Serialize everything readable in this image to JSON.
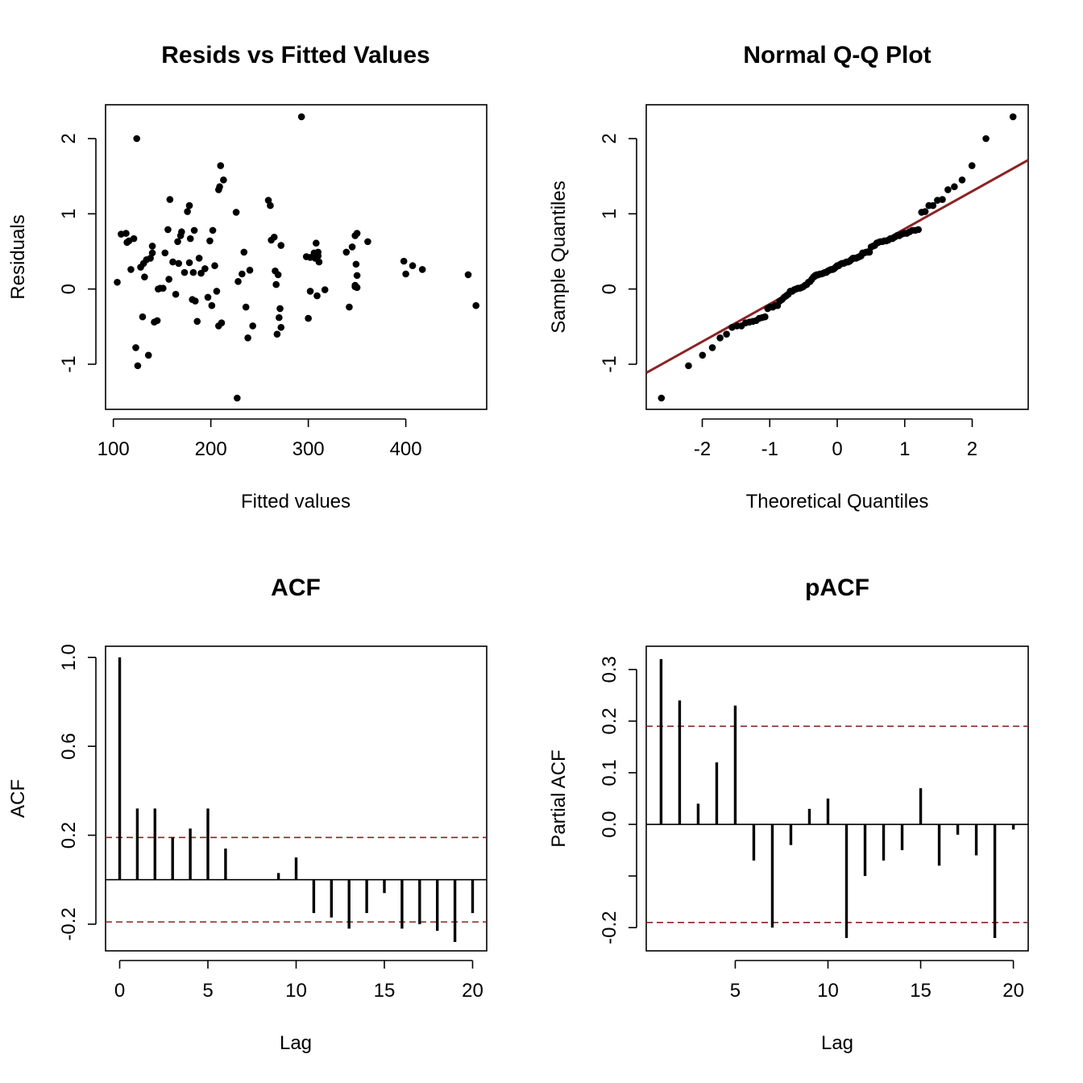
{
  "colors": {
    "ink": "#000000",
    "ref": "#8B2323"
  },
  "chart_data": [
    {
      "type": "scatter",
      "title": "Resids vs Fitted Values",
      "xlabel": "Fitted values",
      "ylabel": "Residuals",
      "xlim": [
        92,
        483
      ],
      "ylim": [
        -1.6,
        2.45
      ],
      "xticks": [
        100,
        200,
        300,
        400
      ],
      "yticks": [
        -1,
        0,
        1,
        2
      ],
      "points": [
        [
          104,
          0.09
        ],
        [
          108,
          0.73
        ],
        [
          113,
          0.74
        ],
        [
          114,
          0.62
        ],
        [
          116,
          0.64
        ],
        [
          118,
          0.26
        ],
        [
          121,
          0.67
        ],
        [
          123,
          -0.78
        ],
        [
          124,
          2.0
        ],
        [
          125,
          -1.02
        ],
        [
          128,
          0.29
        ],
        [
          130,
          -0.37
        ],
        [
          131,
          0.34
        ],
        [
          132,
          0.16
        ],
        [
          134,
          0.39
        ],
        [
          136,
          -0.88
        ],
        [
          138,
          0.41
        ],
        [
          140,
          0.48
        ],
        [
          140,
          0.57
        ],
        [
          142,
          -0.44
        ],
        [
          145,
          -0.42
        ],
        [
          146,
          0.0
        ],
        [
          148,
          0.01
        ],
        [
          151,
          0.01
        ],
        [
          153,
          0.48
        ],
        [
          156,
          0.79
        ],
        [
          157,
          0.13
        ],
        [
          158,
          1.19
        ],
        [
          161,
          0.36
        ],
        [
          164,
          -0.07
        ],
        [
          166,
          0.63
        ],
        [
          167,
          0.34
        ],
        [
          169,
          0.71
        ],
        [
          170,
          0.76
        ],
        [
          173,
          0.22
        ],
        [
          176,
          1.03
        ],
        [
          178,
          0.35
        ],
        [
          178,
          1.11
        ],
        [
          179,
          0.67
        ],
        [
          181,
          -0.14
        ],
        [
          182,
          0.22
        ],
        [
          183,
          0.78
        ],
        [
          184,
          -0.16
        ],
        [
          186,
          -0.43
        ],
        [
          188,
          0.41
        ],
        [
          190,
          0.21
        ],
        [
          194,
          0.27
        ],
        [
          197,
          -0.11
        ],
        [
          199,
          0.64
        ],
        [
          201,
          -0.22
        ],
        [
          202,
          0.78
        ],
        [
          204,
          0.31
        ],
        [
          206,
          -0.03
        ],
        [
          208,
          1.32
        ],
        [
          208,
          -0.49
        ],
        [
          209,
          1.36
        ],
        [
          210,
          1.64
        ],
        [
          211,
          -0.45
        ],
        [
          213,
          1.45
        ],
        [
          226,
          1.02
        ],
        [
          227,
          -1.45
        ],
        [
          228,
          0.1
        ],
        [
          232,
          0.2
        ],
        [
          234,
          0.49
        ],
        [
          236,
          -0.24
        ],
        [
          238,
          -0.65
        ],
        [
          240,
          0.25
        ],
        [
          243,
          -0.49
        ],
        [
          259,
          1.18
        ],
        [
          261,
          1.11
        ],
        [
          262,
          0.65
        ],
        [
          265,
          0.69
        ],
        [
          266,
          0.24
        ],
        [
          268,
          -0.6
        ],
        [
          267,
          0.06
        ],
        [
          269,
          0.19
        ],
        [
          270,
          -0.38
        ],
        [
          271,
          -0.26
        ],
        [
          272,
          -0.51
        ],
        [
          272,
          0.58
        ],
        [
          293,
          2.29
        ],
        [
          298,
          0.43
        ],
        [
          300,
          -0.39
        ],
        [
          302,
          0.42
        ],
        [
          302,
          -0.03
        ],
        [
          306,
          0.48
        ],
        [
          307,
          0.41
        ],
        [
          308,
          0.61
        ],
        [
          309,
          -0.09
        ],
        [
          310,
          0.44
        ],
        [
          310,
          0.49
        ],
        [
          311,
          0.36
        ],
        [
          317,
          -0.01
        ],
        [
          342,
          -0.24
        ],
        [
          345,
          0.56
        ],
        [
          348,
          0.71
        ],
        [
          348,
          0.05
        ],
        [
          348,
          0.03
        ],
        [
          349,
          0.33
        ],
        [
          350,
          0.74
        ],
        [
          350,
          0.18
        ],
        [
          350,
          0.02
        ],
        [
          361,
          0.63
        ],
        [
          398,
          0.37
        ],
        [
          400,
          0.2
        ],
        [
          407,
          0.31
        ],
        [
          417,
          0.26
        ],
        [
          464,
          0.19
        ],
        [
          472,
          -0.22
        ],
        [
          339,
          0.49
        ]
      ]
    },
    {
      "type": "scatter",
      "title": "Normal Q-Q Plot",
      "xlabel": "Theoretical Quantiles",
      "ylabel": "Sample Quantiles",
      "xlim": [
        -2.83,
        2.83
      ],
      "ylim": [
        -1.6,
        2.45
      ],
      "xticks": [
        -2,
        -1,
        0,
        1,
        2
      ],
      "yticks": [
        -1,
        0,
        1,
        2
      ],
      "reference_line": {
        "slope": 0.5,
        "intercept": 0.3
      },
      "sample_quantiles": [
        -1.45,
        -1.02,
        -0.88,
        -0.78,
        -0.65,
        -0.6,
        -0.51,
        -0.49,
        -0.49,
        -0.45,
        -0.44,
        -0.43,
        -0.42,
        -0.39,
        -0.38,
        -0.37,
        -0.26,
        -0.24,
        -0.24,
        -0.22,
        -0.22,
        -0.16,
        -0.14,
        -0.11,
        -0.09,
        -0.07,
        -0.03,
        -0.03,
        -0.01,
        0.0,
        0.01,
        0.01,
        0.02,
        0.03,
        0.05,
        0.06,
        0.09,
        0.1,
        0.13,
        0.16,
        0.18,
        0.19,
        0.19,
        0.2,
        0.2,
        0.21,
        0.22,
        0.22,
        0.24,
        0.25,
        0.26,
        0.26,
        0.27,
        0.29,
        0.31,
        0.31,
        0.33,
        0.34,
        0.34,
        0.35,
        0.36,
        0.36,
        0.37,
        0.39,
        0.41,
        0.41,
        0.41,
        0.42,
        0.43,
        0.44,
        0.48,
        0.48,
        0.49,
        0.49,
        0.49,
        0.56,
        0.57,
        0.58,
        0.61,
        0.62,
        0.63,
        0.63,
        0.64,
        0.64,
        0.65,
        0.67,
        0.67,
        0.69,
        0.71,
        0.71,
        0.73,
        0.74,
        0.74,
        0.76,
        0.78,
        0.78,
        0.79,
        1.02,
        1.03,
        1.11,
        1.11,
        1.18,
        1.19,
        1.32,
        1.36,
        1.45,
        1.64,
        2.0,
        2.29
      ]
    },
    {
      "type": "bar",
      "title": "ACF",
      "xlabel": "Lag",
      "ylabel": "ACF",
      "xlim": [
        -0.8,
        20.8
      ],
      "ylim": [
        -0.32,
        1.05
      ],
      "xticks": [
        0,
        5,
        10,
        15,
        20
      ],
      "yticks": [
        -0.2,
        0.2,
        0.6,
        1.0
      ],
      "yticklabels": [
        "-0.2",
        "0.2",
        "0.6",
        "1.0"
      ],
      "ci": 0.19,
      "lags": [
        0,
        1,
        2,
        3,
        4,
        5,
        6,
        7,
        8,
        9,
        10,
        11,
        12,
        13,
        14,
        15,
        16,
        17,
        18,
        19,
        20
      ],
      "values": [
        1.0,
        0.32,
        0.32,
        0.19,
        0.23,
        0.32,
        0.14,
        0.0,
        0.0,
        0.03,
        0.1,
        -0.15,
        -0.17,
        -0.22,
        -0.15,
        -0.06,
        -0.22,
        -0.2,
        -0.23,
        -0.28,
        -0.15
      ]
    },
    {
      "type": "bar",
      "title": "pACF",
      "xlabel": "Lag",
      "ylabel": "Partial ACF",
      "xlim": [
        0.2,
        20.8
      ],
      "ylim": [
        -0.245,
        0.345
      ],
      "xticks": [
        5,
        10,
        15,
        20
      ],
      "yticks": [
        -0.2,
        -0.1,
        0.0,
        0.1,
        0.2,
        0.3
      ],
      "yticklabels": [
        "-0.2",
        "",
        "0.0",
        "0.1",
        "0.2",
        "0.3"
      ],
      "ci": 0.19,
      "lags": [
        1,
        2,
        3,
        4,
        5,
        6,
        7,
        8,
        9,
        10,
        11,
        12,
        13,
        14,
        15,
        16,
        17,
        18,
        19,
        20
      ],
      "values": [
        0.32,
        0.24,
        0.04,
        0.12,
        0.23,
        -0.07,
        -0.2,
        -0.04,
        0.03,
        0.05,
        -0.22,
        -0.1,
        -0.07,
        -0.05,
        0.07,
        -0.08,
        -0.02,
        -0.06,
        -0.22,
        -0.01
      ]
    }
  ]
}
